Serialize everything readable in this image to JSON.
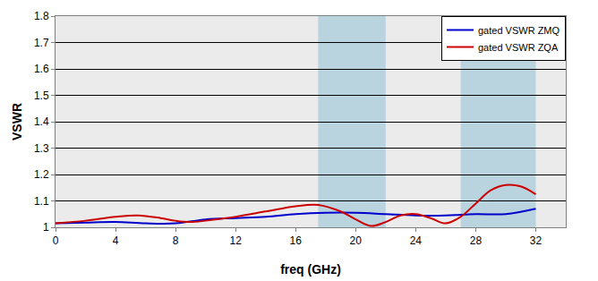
{
  "chart_data": {
    "type": "line",
    "x_label": "freq (GHz)",
    "y_label": "VSWR",
    "series": [
      {
        "name": "gated VSWR ZMQ",
        "color": "#0000cc",
        "x": [
          0,
          2,
          4,
          6,
          8,
          10,
          12,
          14,
          16,
          18,
          20,
          22,
          24,
          26,
          28,
          30,
          32
        ],
        "values": [
          1.015,
          1.018,
          1.02,
          1.015,
          1.015,
          1.03,
          1.035,
          1.04,
          1.05,
          1.055,
          1.055,
          1.05,
          1.045,
          1.045,
          1.05,
          1.05,
          1.07
        ]
      },
      {
        "name": "gated VSWR ZQA",
        "color": "#cc0000",
        "x": [
          0,
          2,
          4,
          5.5,
          7,
          8,
          9,
          10,
          12,
          14,
          16,
          17.5,
          19,
          20,
          21,
          22,
          23,
          24,
          25,
          26,
          27,
          28,
          29,
          30,
          31,
          32
        ],
        "values": [
          1.015,
          1.025,
          1.04,
          1.045,
          1.035,
          1.025,
          1.02,
          1.025,
          1.04,
          1.06,
          1.08,
          1.085,
          1.06,
          1.03,
          1.005,
          1.02,
          1.045,
          1.05,
          1.035,
          1.015,
          1.04,
          1.09,
          1.14,
          1.16,
          1.155,
          1.125
        ]
      }
    ],
    "shaded_x": [
      [
        17.5,
        22
      ],
      [
        27,
        32
      ]
    ],
    "xlim": [
      0,
      34
    ],
    "xticks": [
      0,
      4,
      8,
      12,
      16,
      20,
      24,
      28,
      32
    ],
    "ylim": [
      1,
      1.8
    ],
    "yticks": [
      1,
      1.1,
      1.2,
      1.3,
      1.4,
      1.5,
      1.6,
      1.7,
      1.8
    ],
    "grid": true,
    "legend": "upper right"
  }
}
